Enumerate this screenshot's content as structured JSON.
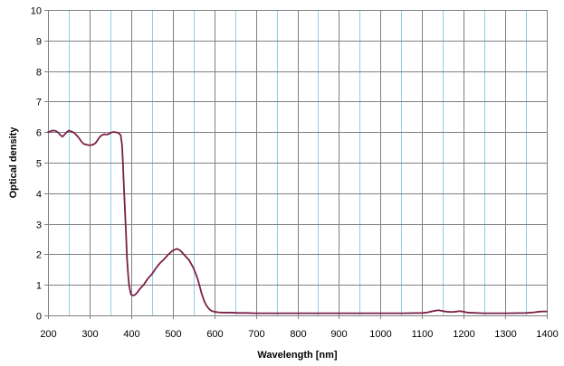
{
  "chart_data": {
    "type": "line",
    "title": "",
    "xlabel": "Wavelength [nm]",
    "ylabel": "Optical density",
    "xlim": [
      200,
      1400
    ],
    "ylim": [
      0,
      10
    ],
    "x_ticks": [
      200,
      300,
      400,
      500,
      600,
      700,
      800,
      900,
      1000,
      1100,
      1200,
      1300,
      1400
    ],
    "y_ticks": [
      0,
      1,
      2,
      3,
      4,
      5,
      6,
      7,
      8,
      9,
      10
    ],
    "x_minor_grid": [
      250,
      350,
      450,
      550,
      650,
      750,
      850,
      950,
      1050,
      1150,
      1250,
      1350
    ],
    "grid": true,
    "legend": "none",
    "colors": {
      "line": "#7b2048",
      "major_grid": "#808080",
      "minor_grid": "#8fd0e8",
      "axis": "#808080"
    },
    "series": [
      {
        "x": [
          200,
          205,
          210,
          215,
          220,
          225,
          230,
          235,
          240,
          245,
          250,
          255,
          260,
          265,
          270,
          275,
          280,
          285,
          290,
          295,
          300,
          305,
          310,
          315,
          320,
          325,
          330,
          335,
          340,
          345,
          350,
          355,
          360,
          365,
          370,
          375,
          378,
          380,
          382,
          385,
          388,
          390,
          393,
          395,
          398,
          400,
          405,
          410,
          415,
          420,
          430,
          440,
          450,
          460,
          470,
          480,
          490,
          500,
          505,
          510,
          515,
          520,
          530,
          540,
          550,
          560,
          565,
          570,
          575,
          580,
          585,
          590,
          595,
          600,
          610,
          620,
          640,
          660,
          680,
          700,
          750,
          800,
          850,
          900,
          950,
          1000,
          1050,
          1100,
          1110,
          1120,
          1130,
          1140,
          1150,
          1160,
          1170,
          1180,
          1190,
          1200,
          1210,
          1250,
          1300,
          1350,
          1370,
          1380,
          1390,
          1400
        ],
        "y": [
          6.0,
          6.02,
          6.05,
          6.05,
          6.03,
          5.98,
          5.9,
          5.85,
          5.92,
          6.0,
          6.05,
          6.03,
          6.0,
          5.95,
          5.88,
          5.8,
          5.7,
          5.62,
          5.6,
          5.58,
          5.57,
          5.58,
          5.6,
          5.65,
          5.75,
          5.85,
          5.9,
          5.93,
          5.92,
          5.93,
          5.97,
          6.0,
          6.0,
          5.99,
          5.97,
          5.9,
          5.6,
          5.1,
          4.4,
          3.5,
          2.6,
          1.9,
          1.3,
          1.0,
          0.78,
          0.68,
          0.65,
          0.68,
          0.75,
          0.85,
          1.0,
          1.2,
          1.35,
          1.55,
          1.72,
          1.85,
          2.0,
          2.12,
          2.15,
          2.18,
          2.15,
          2.1,
          1.95,
          1.8,
          1.55,
          1.2,
          0.95,
          0.7,
          0.5,
          0.35,
          0.25,
          0.18,
          0.14,
          0.12,
          0.1,
          0.09,
          0.09,
          0.08,
          0.08,
          0.07,
          0.07,
          0.07,
          0.07,
          0.07,
          0.07,
          0.07,
          0.07,
          0.08,
          0.09,
          0.12,
          0.15,
          0.17,
          0.14,
          0.12,
          0.11,
          0.12,
          0.14,
          0.12,
          0.09,
          0.07,
          0.07,
          0.08,
          0.1,
          0.12,
          0.13,
          0.13
        ]
      }
    ]
  }
}
